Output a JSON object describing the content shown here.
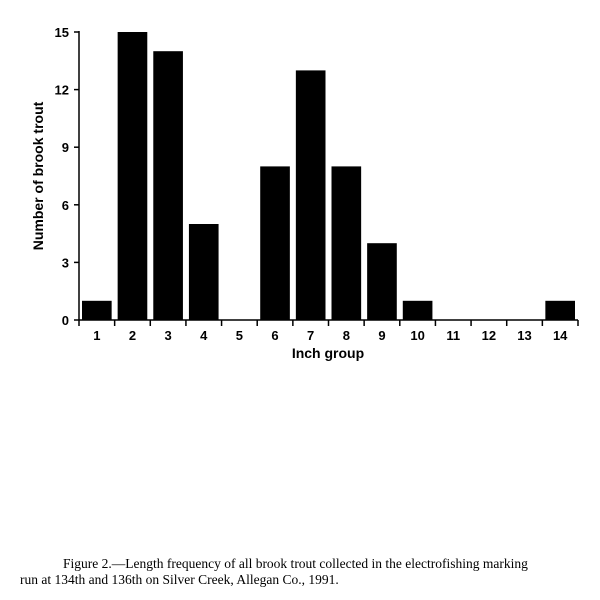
{
  "chart_data": {
    "type": "bar",
    "categories": [
      "1",
      "2",
      "3",
      "4",
      "5",
      "6",
      "7",
      "8",
      "9",
      "10",
      "11",
      "12",
      "13",
      "14"
    ],
    "values": [
      1,
      15,
      14,
      5,
      0,
      8,
      13,
      8,
      4,
      1,
      0,
      0,
      0,
      1
    ],
    "title": "",
    "xlabel": "Inch group",
    "ylabel": "Number of brook trout",
    "ylim": [
      0,
      15
    ],
    "yticks": [
      0,
      3,
      6,
      9,
      12,
      15
    ],
    "grid": false,
    "bar_color": "#000000"
  },
  "caption": {
    "line1": "Figure 2.—Length frequency of all brook trout collected in the electrofishing marking",
    "line2": "run at 134th and 136th on Silver Creek, Allegan Co., 1991."
  }
}
